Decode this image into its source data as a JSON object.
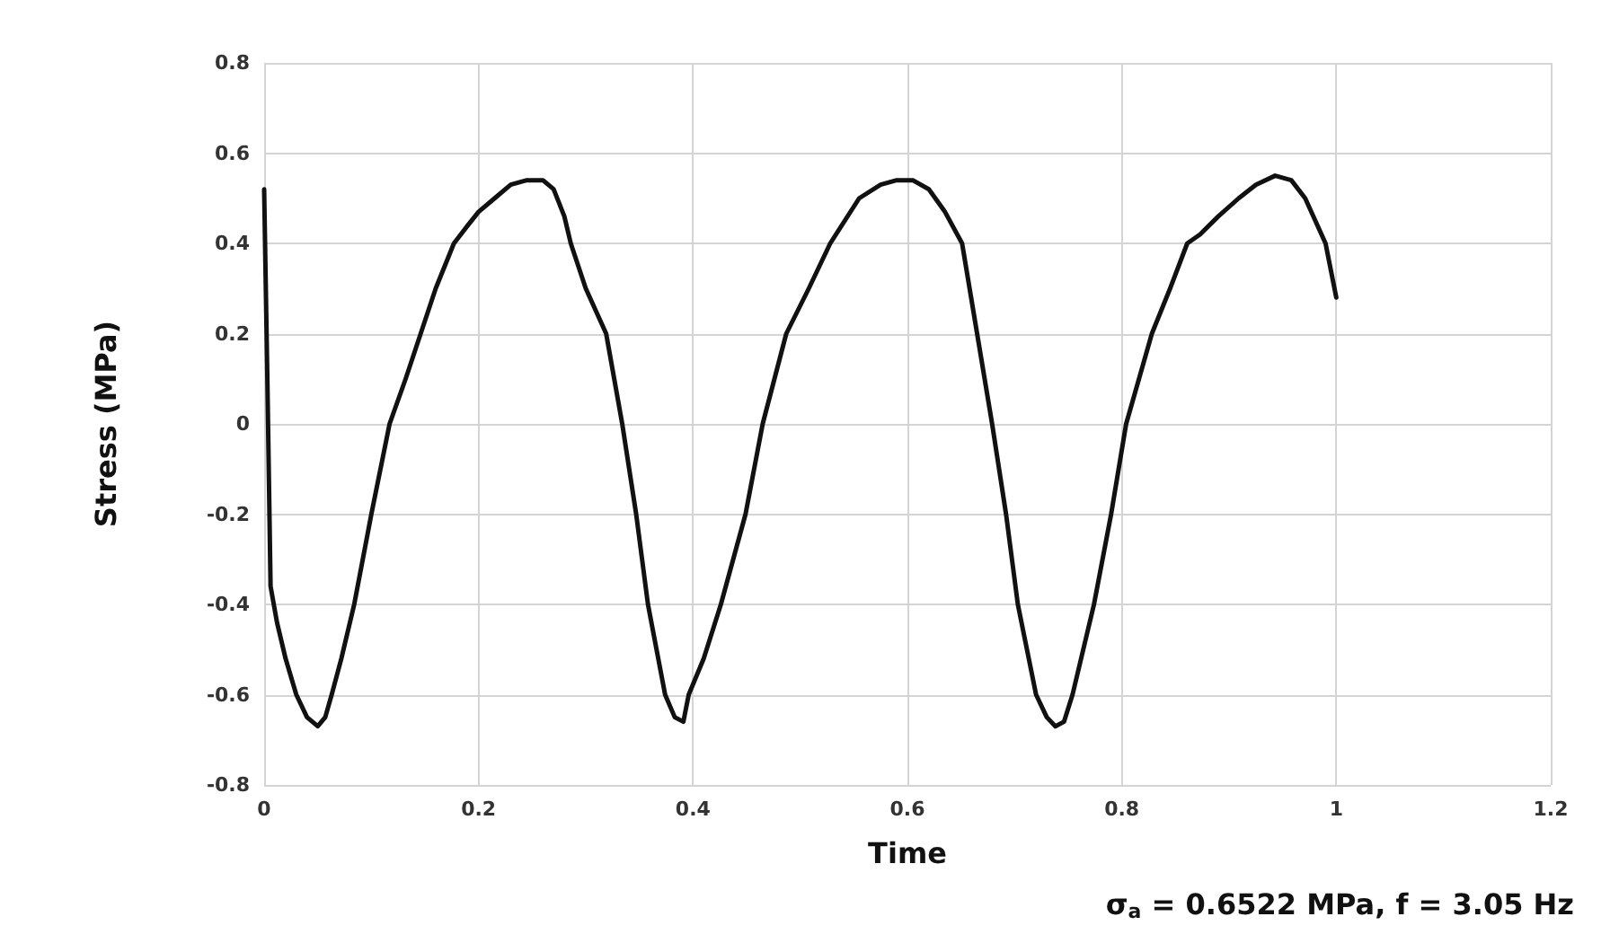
{
  "chart_data": {
    "type": "line",
    "xlabel": "Time",
    "ylabel": "Stress (MPa)",
    "annotations": [
      "σ$_{a}$ = 0.6522 MPa, f = 3.05 Hz"
    ],
    "xlim": [
      0,
      1.2
    ],
    "xticks": [
      0,
      0.2,
      0.4,
      0.6,
      0.8,
      1,
      1.2
    ],
    "ylim": [
      -0.8,
      0.8
    ],
    "yticks": [
      -0.8,
      -0.6,
      -0.4,
      -0.2,
      0,
      0.2,
      0.4,
      0.6,
      0.8
    ],
    "grid": true,
    "marker": "none",
    "line_style": "solid",
    "series": [
      {
        "color": "#111111",
        "x": [
          0,
          0.003,
          0.006,
          0.012,
          0.02,
          0.03,
          0.04,
          0.05,
          0.057,
          0.063,
          0.072,
          0.084,
          0.1,
          0.117,
          0.132,
          0.146,
          0.16,
          0.177,
          0.19,
          0.2,
          0.215,
          0.23,
          0.245,
          0.26,
          0.27,
          0.28,
          0.286,
          0.3,
          0.319,
          0.334,
          0.347,
          0.358,
          0.374,
          0.383,
          0.391,
          0.396,
          0.41,
          0.426,
          0.449,
          0.465,
          0.487,
          0.508,
          0.528,
          0.555,
          0.575,
          0.59,
          0.605,
          0.62,
          0.635,
          0.651,
          0.665,
          0.679,
          0.692,
          0.703,
          0.72,
          0.73,
          0.738,
          0.746,
          0.754,
          0.774,
          0.79,
          0.804,
          0.828,
          0.845,
          0.861,
          0.873,
          0.89,
          0.909,
          0.925,
          0.943,
          0.958,
          0.971,
          0.99,
          1.0
        ],
        "values": [
          0.52,
          0.1,
          -0.36,
          -0.44,
          -0.52,
          -0.6,
          -0.65,
          -0.67,
          -0.65,
          -0.6,
          -0.52,
          -0.4,
          -0.2,
          0,
          0.1,
          0.2,
          0.3,
          0.4,
          0.44,
          0.47,
          0.5,
          0.53,
          0.54,
          0.54,
          0.52,
          0.46,
          0.4,
          0.3,
          0.2,
          0,
          -0.2,
          -0.4,
          -0.6,
          -0.65,
          -0.66,
          -0.6,
          -0.52,
          -0.4,
          -0.2,
          0,
          0.2,
          0.3,
          0.4,
          0.5,
          0.53,
          0.54,
          0.54,
          0.52,
          0.47,
          0.4,
          0.2,
          0,
          -0.2,
          -0.4,
          -0.6,
          -0.65,
          -0.67,
          -0.66,
          -0.6,
          -0.4,
          -0.2,
          0,
          0.2,
          0.3,
          0.4,
          0.42,
          0.46,
          0.5,
          0.53,
          0.55,
          0.54,
          0.5,
          0.4,
          0.28
        ]
      }
    ]
  }
}
